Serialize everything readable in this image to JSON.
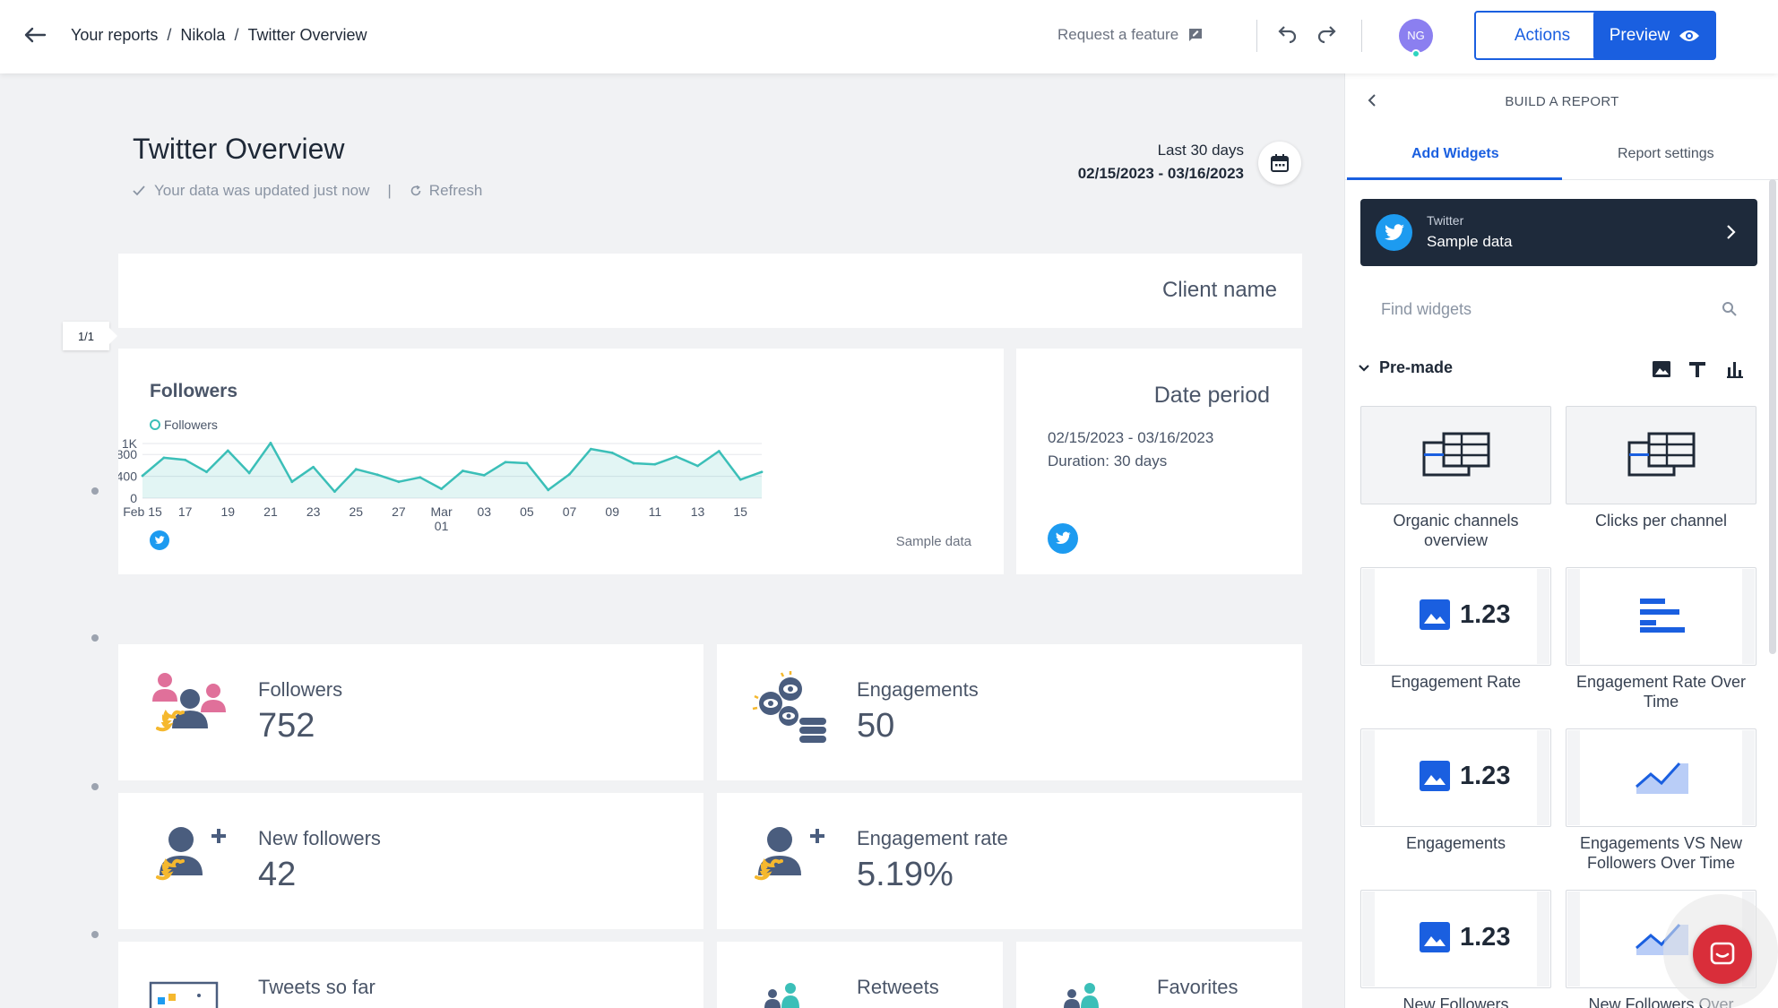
{
  "topbar": {
    "breadcrumbs": [
      "Your reports",
      "Nikola",
      "Twitter Overview"
    ],
    "request_feature": "Request a feature",
    "avatar_initials": "NG",
    "actions_label": "Actions",
    "preview_label": "Preview"
  },
  "report": {
    "title": "Twitter Overview",
    "updated_text": "Your data was updated just now",
    "separator": "|",
    "refresh_label": "Refresh",
    "range_label": "Last 30 days",
    "range_dates": "02/15/2023 - 03/16/2023",
    "client_name": "Client name",
    "page_indicator": "1/1"
  },
  "followers_chart": {
    "title": "Followers",
    "legend": "Followers",
    "source_note": "Sample data"
  },
  "chart_data": {
    "type": "area",
    "title": "Followers",
    "series": [
      {
        "name": "Followers",
        "color": "#3bbfb8",
        "values": [
          410,
          740,
          700,
          480,
          870,
          460,
          1010,
          300,
          570,
          120,
          530,
          430,
          300,
          380,
          170,
          500,
          420,
          660,
          640,
          150,
          440,
          900,
          830,
          640,
          620,
          760,
          590,
          860,
          340,
          480
        ]
      }
    ],
    "x_tick_labels": [
      "Feb 15",
      "17",
      "19",
      "21",
      "23",
      "25",
      "27",
      "Mar 01",
      "03",
      "05",
      "07",
      "09",
      "11",
      "13",
      "15"
    ],
    "y_tick_labels": [
      "0",
      "400",
      "800",
      "1K"
    ],
    "ylim": [
      0,
      1000
    ],
    "grid": true
  },
  "date_period": {
    "title": "Date period",
    "dates": "02/15/2023 - 03/16/2023",
    "duration_label": "Duration:",
    "duration_value": "30 days"
  },
  "kpis": {
    "followers": {
      "label": "Followers",
      "value": "752"
    },
    "engagements": {
      "label": "Engagements",
      "value": "50"
    },
    "new_followers": {
      "label": "New followers",
      "value": "42"
    },
    "engagement_rate": {
      "label": "Engagement rate",
      "value": "5.19%"
    },
    "tweets": {
      "label": "Tweets so far"
    },
    "retweets": {
      "label": "Retweets"
    },
    "favorites": {
      "label": "Favorites"
    }
  },
  "sidebar": {
    "title": "BUILD A REPORT",
    "tabs": [
      "Add Widgets",
      "Report settings"
    ],
    "source_kicker": "Twitter",
    "source_name": "Sample data",
    "search_placeholder": "Find widgets",
    "section": "Pre-made",
    "widgets": [
      {
        "label": "Organic channels overview",
        "tile": "layout"
      },
      {
        "label": "Clicks per channel",
        "tile": "layout"
      },
      {
        "label": "Engagement Rate",
        "tile": "number",
        "number": "1.23"
      },
      {
        "label": "Engagement Rate Over Time",
        "tile": "bars"
      },
      {
        "label": "Engagements",
        "tile": "number",
        "number": "1.23"
      },
      {
        "label": "Engagements VS New Followers Over Time",
        "tile": "line"
      },
      {
        "label": "New Followers",
        "tile": "number",
        "number": "1.23"
      },
      {
        "label": "New Followers Over",
        "tile": "line"
      }
    ]
  },
  "colors": {
    "accent": "#1a5fe0",
    "teal": "#3bbfb8",
    "twitter": "#1d9bf0",
    "source_bg": "#1e2a3b",
    "chat": "#d92e3a"
  }
}
